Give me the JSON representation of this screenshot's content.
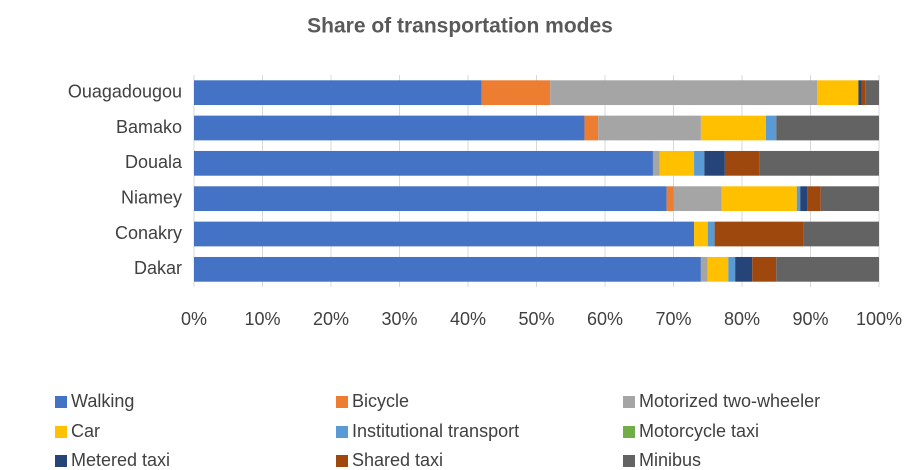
{
  "chart_data": {
    "type": "stacked-bar-horizontal",
    "title": "Share of transportation modes",
    "categories": [
      "Ouagadougou",
      "Bamako",
      "Douala",
      "Niamey",
      "Conakry",
      "Dakar"
    ],
    "series": [
      {
        "name": "Walking",
        "color": "#4472c4",
        "values": [
          42,
          57,
          67,
          69,
          73,
          74
        ]
      },
      {
        "name": "Bicycle",
        "color": "#ed7d31",
        "values": [
          10,
          2,
          0,
          1,
          0,
          0
        ]
      },
      {
        "name": "Motorized two-wheeler",
        "color": "#a5a5a5",
        "values": [
          39,
          15,
          1,
          7,
          0,
          1
        ]
      },
      {
        "name": "Car",
        "color": "#ffc000",
        "values": [
          6,
          9.5,
          5,
          11,
          2,
          3
        ]
      },
      {
        "name": "Institutional transport",
        "color": "#5b9bd5",
        "values": [
          0,
          1.5,
          1.5,
          0.5,
          1,
          1
        ]
      },
      {
        "name": "Motorcycle taxi",
        "color": "#70ad47",
        "values": [
          0,
          0,
          0,
          0,
          0,
          0
        ]
      },
      {
        "name": "Metered taxi",
        "color": "#264478",
        "values": [
          0.5,
          0,
          3,
          1,
          0,
          2.5
        ]
      },
      {
        "name": "Shared taxi",
        "color": "#9e480e",
        "values": [
          0.5,
          0,
          5,
          2,
          13,
          3.5
        ]
      },
      {
        "name": "Minibus",
        "color": "#636363",
        "values": [
          2,
          15,
          17.5,
          8.5,
          11,
          15
        ]
      }
    ],
    "xlim": [
      0,
      100
    ],
    "xticks": [
      {
        "value": 0,
        "label": "0%"
      },
      {
        "value": 10,
        "label": "10%"
      },
      {
        "value": 20,
        "label": "20%"
      },
      {
        "value": 30,
        "label": "30%"
      },
      {
        "value": 40,
        "label": "40%"
      },
      {
        "value": 50,
        "label": "50%"
      },
      {
        "value": 60,
        "label": "60%"
      },
      {
        "value": 70,
        "label": "70%"
      },
      {
        "value": 80,
        "label": "80%"
      },
      {
        "value": 90,
        "label": "90%"
      },
      {
        "value": 100,
        "label": "100%"
      }
    ],
    "grid": true,
    "legend": "bottom"
  }
}
